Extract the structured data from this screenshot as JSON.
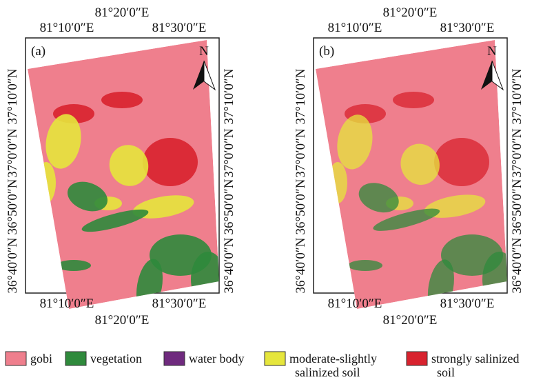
{
  "panels": [
    {
      "label": "(a)",
      "north": "N",
      "top_labels": [
        "81°20′0″E",
        "81°10′0″E",
        "81°30′0″E"
      ],
      "bottom_labels": [
        "81°10′0″E",
        "81°30′0″E",
        "81°20′0″E"
      ],
      "left_labels": [
        "36°40′0″N",
        "36°50′0″N",
        "37°0′0″N",
        "37°10′0″N"
      ],
      "right_labels": [
        "36°40′0″N",
        "36°50′0″N",
        "37°0′0″N",
        "37°10′0″N"
      ]
    },
    {
      "label": "(b)",
      "north": "N",
      "top_labels": [
        "81°20′0″E",
        "81°10′0″E",
        "81°30′0″E"
      ],
      "bottom_labels": [
        "81°10′0″E",
        "81°30′0″E",
        "81°20′0″E"
      ],
      "left_labels": [
        "36°40′0″N",
        "36°50′0″N",
        "37°0′0″N",
        "37°10′0″N"
      ],
      "right_labels": [
        "36°40′0″N",
        "36°50′0″N",
        "37°0′0″N",
        "37°10′0″N"
      ]
    }
  ],
  "legend": [
    {
      "lines": [
        "gobi"
      ],
      "color": "#ef7f8d"
    },
    {
      "lines": [
        "vegetation"
      ],
      "color": "#2f8a3c"
    },
    {
      "lines": [
        "water body"
      ],
      "color": "#6f2a7e"
    },
    {
      "lines": [
        "moderate-slightly",
        "salinized soil"
      ],
      "color": "#e6e63c"
    },
    {
      "lines": [
        "strongly salinized",
        "soil"
      ],
      "color": "#d8222e"
    }
  ]
}
